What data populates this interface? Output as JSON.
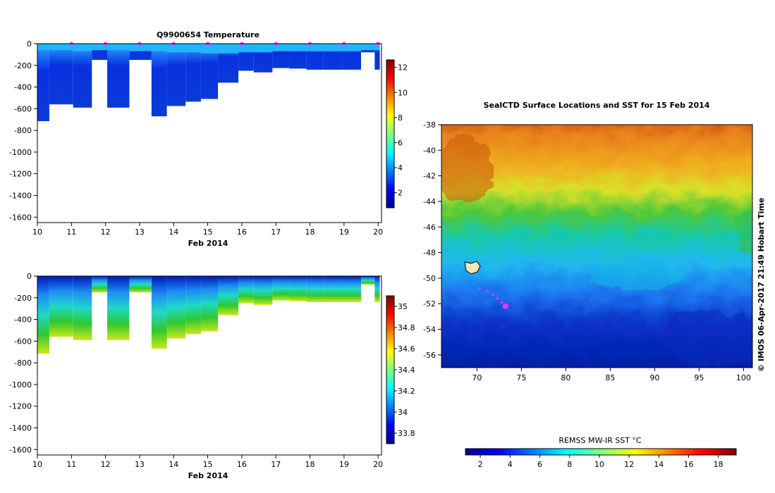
{
  "chart_data": [
    {
      "type": "heatmap",
      "title": "Q9900654  Temperature",
      "xlabel": "Feb 2014",
      "ylabel": "",
      "xlim": [
        10,
        20.1
      ],
      "ylim": [
        -1650,
        0
      ],
      "x_ticks": [
        "10",
        "11",
        "12",
        "13",
        "14",
        "15",
        "16",
        "17",
        "18",
        "19",
        "20"
      ],
      "y_ticks": [
        "0",
        "-200",
        "-400",
        "-600",
        "-800",
        "-1000",
        "-1200",
        "-1400",
        "-1600"
      ],
      "colorbar": {
        "min": 0.8,
        "max": 12.6,
        "ticks": [
          "2",
          "4",
          "6",
          "8",
          "10",
          "12"
        ]
      },
      "surface_markers_x": [
        11,
        12,
        13,
        14,
        15,
        16,
        17,
        18,
        19,
        20
      ],
      "profiles": [
        {
          "x0": 10.0,
          "x1": 10.35,
          "mld": -60,
          "bottom": -715
        },
        {
          "x0": 10.35,
          "x1": 11.05,
          "mld": -60,
          "bottom": -560
        },
        {
          "x0": 11.05,
          "x1": 11.6,
          "mld": -70,
          "bottom": -590
        },
        {
          "x0": 11.6,
          "x1": 12.05,
          "mld": -60,
          "bottom": -150
        },
        {
          "x0": 12.05,
          "x1": 12.7,
          "mld": -60,
          "bottom": -590
        },
        {
          "x0": 12.7,
          "x1": 13.35,
          "mld": -70,
          "bottom": -150
        },
        {
          "x0": 13.35,
          "x1": 13.8,
          "mld": -70,
          "bottom": -670
        },
        {
          "x0": 13.8,
          "x1": 14.35,
          "mld": -80,
          "bottom": -575
        },
        {
          "x0": 14.35,
          "x1": 14.8,
          "mld": -80,
          "bottom": -535
        },
        {
          "x0": 14.8,
          "x1": 15.3,
          "mld": -90,
          "bottom": -510
        },
        {
          "x0": 15.3,
          "x1": 15.9,
          "mld": -90,
          "bottom": -360
        },
        {
          "x0": 15.9,
          "x1": 16.35,
          "mld": -80,
          "bottom": -250
        },
        {
          "x0": 16.35,
          "x1": 16.9,
          "mld": -80,
          "bottom": -265
        },
        {
          "x0": 16.9,
          "x1": 17.4,
          "mld": -70,
          "bottom": -225
        },
        {
          "x0": 17.4,
          "x1": 17.9,
          "mld": -70,
          "bottom": -230
        },
        {
          "x0": 17.9,
          "x1": 18.4,
          "mld": -70,
          "bottom": -240
        },
        {
          "x0": 18.4,
          "x1": 18.95,
          "mld": -70,
          "bottom": -240
        },
        {
          "x0": 18.95,
          "x1": 19.5,
          "mld": -70,
          "bottom": -240
        },
        {
          "x0": 19.5,
          "x1": 19.9,
          "mld": -60,
          "bottom": -80
        },
        {
          "x0": 19.9,
          "x1": 20.05,
          "mld": -60,
          "bottom": -240
        }
      ]
    },
    {
      "type": "heatmap",
      "title": "",
      "xlabel": "Feb 2014",
      "ylabel": "",
      "xlim": [
        10,
        20.1
      ],
      "ylim": [
        -1650,
        0
      ],
      "x_ticks": [
        "10",
        "11",
        "12",
        "13",
        "14",
        "15",
        "16",
        "17",
        "18",
        "19",
        "20"
      ],
      "y_ticks": [
        "0",
        "-200",
        "-400",
        "-600",
        "-800",
        "-1000",
        "-1200",
        "-1400",
        "-1600"
      ],
      "colorbar": {
        "min": 33.7,
        "max": 35.1,
        "ticks": [
          "33.8",
          "34",
          "34.2",
          "34.4",
          "34.6",
          "34.8",
          "35"
        ]
      }
    },
    {
      "type": "heatmap",
      "title": "SealCTD Surface Locations and SST for 15 Feb 2014",
      "xlabel": "",
      "ylabel": "",
      "xlim": [
        66,
        101
      ],
      "ylim": [
        -57,
        -38
      ],
      "x_ticks": [
        "70",
        "75",
        "80",
        "85",
        "90",
        "95",
        "100"
      ],
      "y_ticks": [
        "-38",
        "-40",
        "-42",
        "-44",
        "-46",
        "-48",
        "-50",
        "-52",
        "-54",
        "-56"
      ],
      "colorbar": {
        "label": "REMSS MW-IR SST °C",
        "min": 1,
        "max": 19.2,
        "ticks": [
          "2",
          "4",
          "6",
          "8",
          "10",
          "12",
          "14",
          "16",
          "18"
        ]
      },
      "track": [
        {
          "x": 70.3,
          "y": -50.8
        },
        {
          "x": 71.2,
          "y": -51.0
        },
        {
          "x": 71.8,
          "y": -51.3
        },
        {
          "x": 72.3,
          "y": -51.6
        },
        {
          "x": 72.8,
          "y": -51.9
        },
        {
          "x": 73.2,
          "y": -52.2
        }
      ]
    }
  ],
  "credit": "© IMOS 06-Apr-2017 21:49 Hobart Time",
  "colors": {
    "track": "#ff33ff",
    "jet": [
      "#00008f",
      "#0000ff",
      "#00ffff",
      "#ffff00",
      "#ff0000",
      "#800000"
    ]
  }
}
